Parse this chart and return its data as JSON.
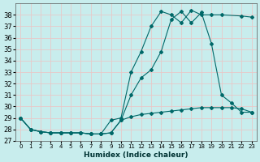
{
  "xlabel": "Humidex (Indice chaleur)",
  "ylabel": "",
  "xlim": [
    -0.5,
    23.5
  ],
  "ylim": [
    27,
    39
  ],
  "yticks": [
    27,
    28,
    29,
    30,
    31,
    32,
    33,
    34,
    35,
    36,
    37,
    38
  ],
  "bg_color": "#c8eded",
  "grid_color": "#e8c8c8",
  "line_color": "#006868",
  "line1_x": [
    0,
    1,
    2,
    3,
    4,
    5,
    6,
    7,
    8,
    9,
    10,
    11,
    12,
    13,
    14,
    15,
    16,
    17,
    18,
    19,
    20,
    21,
    22,
    23
  ],
  "line1_y": [
    29.0,
    28.0,
    27.8,
    27.7,
    27.7,
    27.7,
    27.7,
    27.6,
    27.6,
    27.7,
    28.8,
    31.0,
    32.5,
    33.2,
    34.8,
    37.6,
    38.3,
    37.3,
    38.2,
    35.5,
    31.0,
    30.3,
    29.5,
    29.5
  ],
  "line2_x": [
    0,
    1,
    2,
    3,
    4,
    5,
    6,
    7,
    8,
    9,
    10,
    11,
    12,
    13,
    14,
    15,
    16,
    17,
    18,
    19,
    20,
    22,
    23
  ],
  "line2_y": [
    29.0,
    28.0,
    27.8,
    27.7,
    27.7,
    27.7,
    27.7,
    27.6,
    27.6,
    28.8,
    29.0,
    33.0,
    34.8,
    37.0,
    38.3,
    38.0,
    37.3,
    38.4,
    38.0,
    38.0,
    38.0,
    37.9,
    37.8
  ],
  "line3_x": [
    0,
    1,
    2,
    3,
    4,
    5,
    6,
    7,
    8,
    9,
    10,
    11,
    12,
    13,
    14,
    15,
    16,
    17,
    18,
    19,
    20,
    21,
    22,
    23
  ],
  "line3_y": [
    29.0,
    28.0,
    27.8,
    27.7,
    27.7,
    27.7,
    27.7,
    27.6,
    27.6,
    27.7,
    28.8,
    29.1,
    29.3,
    29.4,
    29.5,
    29.6,
    29.7,
    29.8,
    29.9,
    29.9,
    29.9,
    29.9,
    29.8,
    29.5
  ]
}
